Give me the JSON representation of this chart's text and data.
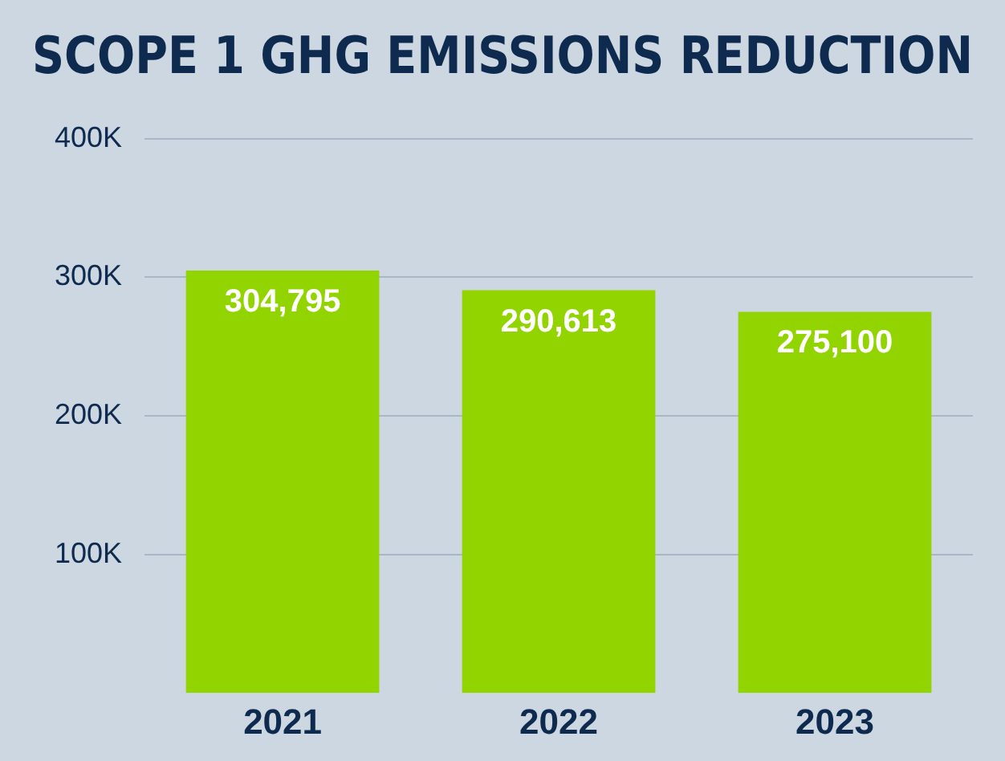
{
  "chart_data": {
    "type": "bar",
    "title": "SCOPE 1 GHG EMISSIONS REDUCTION",
    "categories": [
      "2021",
      "2022",
      "2023"
    ],
    "values": [
      304795,
      290613,
      275100
    ],
    "color": "#92d400",
    "ylim": [
      0,
      400000
    ],
    "yticks": [
      {
        "value": 100000,
        "label": "100K"
      },
      {
        "value": 200000,
        "label": "200K"
      },
      {
        "value": 300000,
        "label": "300K"
      },
      {
        "value": 400000,
        "label": "400K"
      }
    ],
    "grid": "y",
    "value_labels": [
      "304,795",
      "290,613",
      "275,100"
    ]
  }
}
